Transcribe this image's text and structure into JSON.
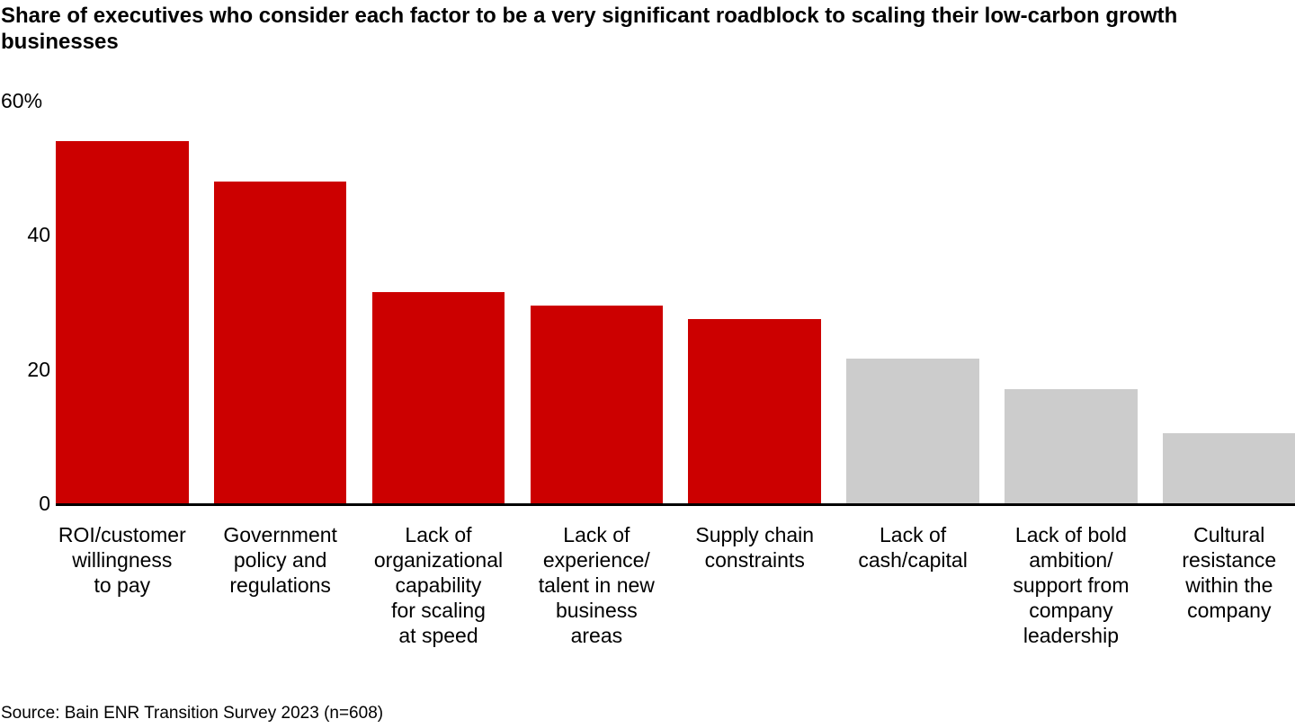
{
  "page": {
    "title": "Share of executives who consider each factor to be a very significant roadblock to scaling their low-carbon growth businesses",
    "source": "Source: Bain ENR Transition Survey 2023 (n=608)"
  },
  "colors": {
    "bar_highlight": "#cc0000",
    "bar_muted": "#cccccc",
    "axis": "#000000",
    "text": "#000000",
    "background": "#ffffff"
  },
  "chart_data": {
    "type": "bar",
    "title": "Share of executives who consider each factor to be a very significant roadblock to scaling their low-carbon growth businesses",
    "xlabel": "",
    "ylabel": "",
    "unit": "%",
    "ylim": [
      0,
      60
    ],
    "grid": false,
    "legend": null,
    "y_ticks": [
      {
        "value": 60,
        "label": "60%"
      },
      {
        "value": 40,
        "label": "40"
      },
      {
        "value": 20,
        "label": "20"
      },
      {
        "value": 0,
        "label": "0"
      }
    ],
    "categories": [
      "ROI/customer willingness to pay",
      "Government policy and regulations",
      "Lack of organizational capability for scaling at speed",
      "Lack of experience/talent in new business areas",
      "Supply chain constraints",
      "Lack of cash/capital",
      "Lack of bold ambition/support from company leadership",
      "Cultural resistance within the company"
    ],
    "category_display_lines": [
      [
        "ROI/customer",
        "willingness",
        "to pay"
      ],
      [
        "Government",
        "policy and",
        "regulations"
      ],
      [
        "Lack of",
        "organizational",
        "capability",
        "for scaling",
        "at speed"
      ],
      [
        "Lack of",
        "experience/",
        "talent in new",
        "business",
        "areas"
      ],
      [
        "Supply chain",
        "constraints"
      ],
      [
        "Lack of",
        "cash/capital"
      ],
      [
        "Lack of bold",
        "ambition/",
        "support from",
        "company",
        "leadership"
      ],
      [
        "Cultural",
        "resistance",
        "within the",
        "company"
      ]
    ],
    "values": [
      54,
      48,
      31.5,
      29.5,
      27.5,
      21.5,
      17,
      10.5
    ],
    "bar_color_keys": [
      "bar_highlight",
      "bar_highlight",
      "bar_highlight",
      "bar_highlight",
      "bar_highlight",
      "bar_muted",
      "bar_muted",
      "bar_muted"
    ]
  }
}
